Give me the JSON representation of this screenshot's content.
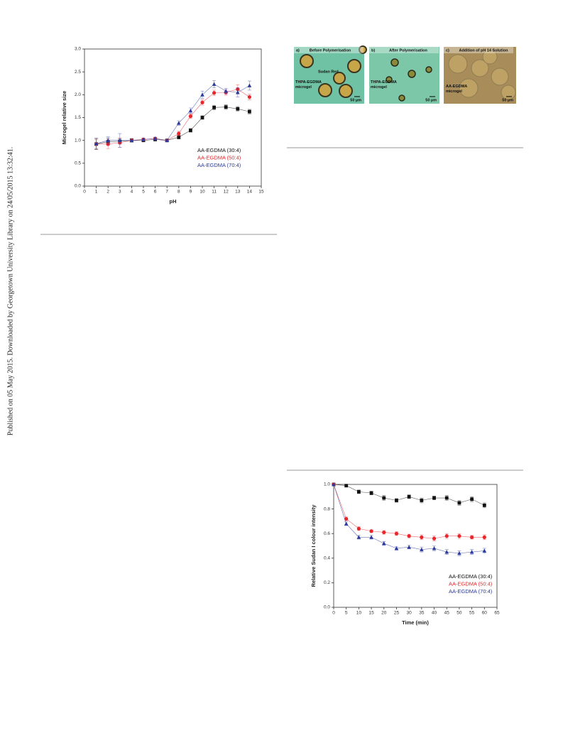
{
  "sidebar": "Published on 05 May 2015. Downloaded by Georgetown University Library on 24/05/2015 13:32:41.",
  "micrographs": [
    {
      "tag": "a)",
      "caption": "Before Polymerisation",
      "labels": [
        "Sudan Red",
        "THPA-EGDMA microgel"
      ],
      "scale": "50 µm"
    },
    {
      "tag": "b)",
      "caption": "After Polymerisation",
      "labels": [
        "THPA-EGDMA microgel"
      ],
      "scale": "50 µm"
    },
    {
      "tag": "c)",
      "caption": "Addition of pH 14 Solution",
      "labels": [
        "AA-EGDMA microgel"
      ],
      "scale": "50 µm"
    }
  ],
  "chart_data": [
    {
      "type": "line",
      "x_label": "pH",
      "y_label": "Microgel relative size",
      "legend": "lower right",
      "x": [
        1,
        2,
        3,
        4,
        5,
        6,
        7,
        8,
        9,
        10,
        11,
        12,
        13,
        14
      ],
      "xlim": [
        0,
        15
      ],
      "xticks": [
        0,
        1,
        2,
        3,
        4,
        5,
        6,
        7,
        8,
        9,
        10,
        11,
        12,
        13,
        14,
        15
      ],
      "ylim": [
        0,
        3
      ],
      "yticks": [
        {
          "value": 0,
          "label": "0.0"
        },
        0.5,
        {
          "value": 1,
          "label": "1.0"
        },
        1.5,
        {
          "value": 2,
          "label": "2.0"
        },
        2.5,
        {
          "value": 3,
          "label": "3.0"
        }
      ],
      "series": [
        {
          "name": "AA-EGDMA (30:4)",
          "color": "#111111",
          "marker": "square",
          "values": [
            0.92,
            0.97,
            0.98,
            1.0,
            1.0,
            1.02,
            1.0,
            1.07,
            1.22,
            1.5,
            1.72,
            1.73,
            1.69,
            1.63
          ],
          "errors": [
            0.12,
            0.08,
            0.06,
            0.03,
            0.03,
            0.03,
            0.02,
            0.04,
            0.04,
            0.04,
            0.05,
            0.05,
            0.05,
            0.05
          ]
        },
        {
          "name": "AA-EGDMA (50:4)",
          "color": "#e8262b",
          "marker": "circle",
          "values": [
            0.92,
            0.92,
            0.95,
            1.0,
            1.02,
            1.04,
            1.0,
            1.15,
            1.53,
            1.83,
            2.04,
            2.05,
            2.12,
            1.95
          ],
          "errors": [
            0.1,
            0.1,
            0.1,
            0.04,
            0.03,
            0.03,
            0.02,
            0.05,
            0.05,
            0.06,
            0.06,
            0.06,
            0.1,
            0.06
          ]
        },
        {
          "name": "AA-EGDMA (70:4)",
          "color": "#2b3a9c",
          "marker": "triangle",
          "values": [
            0.93,
            1.0,
            1.0,
            1.0,
            1.02,
            1.04,
            1.0,
            1.38,
            1.65,
            2.0,
            2.23,
            2.08,
            2.05,
            2.2
          ],
          "errors": [
            0.12,
            0.08,
            0.15,
            0.04,
            0.03,
            0.03,
            0.02,
            0.05,
            0.06,
            0.08,
            0.08,
            0.06,
            0.1,
            0.1
          ]
        }
      ]
    },
    {
      "type": "line",
      "x_label": "Time (min)",
      "y_label": "Relative Sudan I colour intensity",
      "legend": "lower right",
      "x": [
        0,
        5,
        10,
        15,
        20,
        25,
        30,
        35,
        40,
        45,
        50,
        55,
        60
      ],
      "xlim": [
        0,
        65
      ],
      "xticks": [
        0,
        5,
        10,
        15,
        20,
        25,
        30,
        35,
        40,
        45,
        50,
        55,
        60,
        65
      ],
      "ylim": [
        0,
        1
      ],
      "yticks": [
        {
          "value": 0,
          "label": "0.0"
        },
        0.2,
        0.4,
        0.6,
        0.8,
        {
          "value": 1,
          "label": "1.0"
        }
      ],
      "series": [
        {
          "name": "AA-EGDMA (30:4)",
          "color": "#111111",
          "marker": "square",
          "values": [
            1.0,
            0.99,
            0.94,
            0.93,
            0.89,
            0.87,
            0.9,
            0.87,
            0.89,
            0.89,
            0.85,
            0.88,
            0.83
          ],
          "errors": [
            0,
            0.01,
            0.015,
            0.015,
            0.02,
            0.015,
            0.015,
            0.02,
            0.015,
            0.02,
            0.02,
            0.02,
            0.02
          ]
        },
        {
          "name": "AA-EGDMA (50:4)",
          "color": "#e8262b",
          "marker": "circle",
          "values": [
            1.0,
            0.72,
            0.64,
            0.62,
            0.61,
            0.6,
            0.58,
            0.57,
            0.56,
            0.58,
            0.58,
            0.57,
            0.57
          ],
          "errors": [
            0,
            0.015,
            0.015,
            0.01,
            0.015,
            0.015,
            0.015,
            0.02,
            0.02,
            0.02,
            0.02,
            0.015,
            0.02
          ]
        },
        {
          "name": "AA-EGDMA (70:4)",
          "color": "#2b3a9c",
          "marker": "triangle",
          "values": [
            1.0,
            0.68,
            0.57,
            0.57,
            0.52,
            0.48,
            0.49,
            0.47,
            0.48,
            0.45,
            0.44,
            0.45,
            0.46
          ],
          "errors": [
            0,
            0.015,
            0.015,
            0.015,
            0.015,
            0.015,
            0.015,
            0.02,
            0.02,
            0.02,
            0.02,
            0.02,
            0.02
          ]
        }
      ]
    }
  ]
}
